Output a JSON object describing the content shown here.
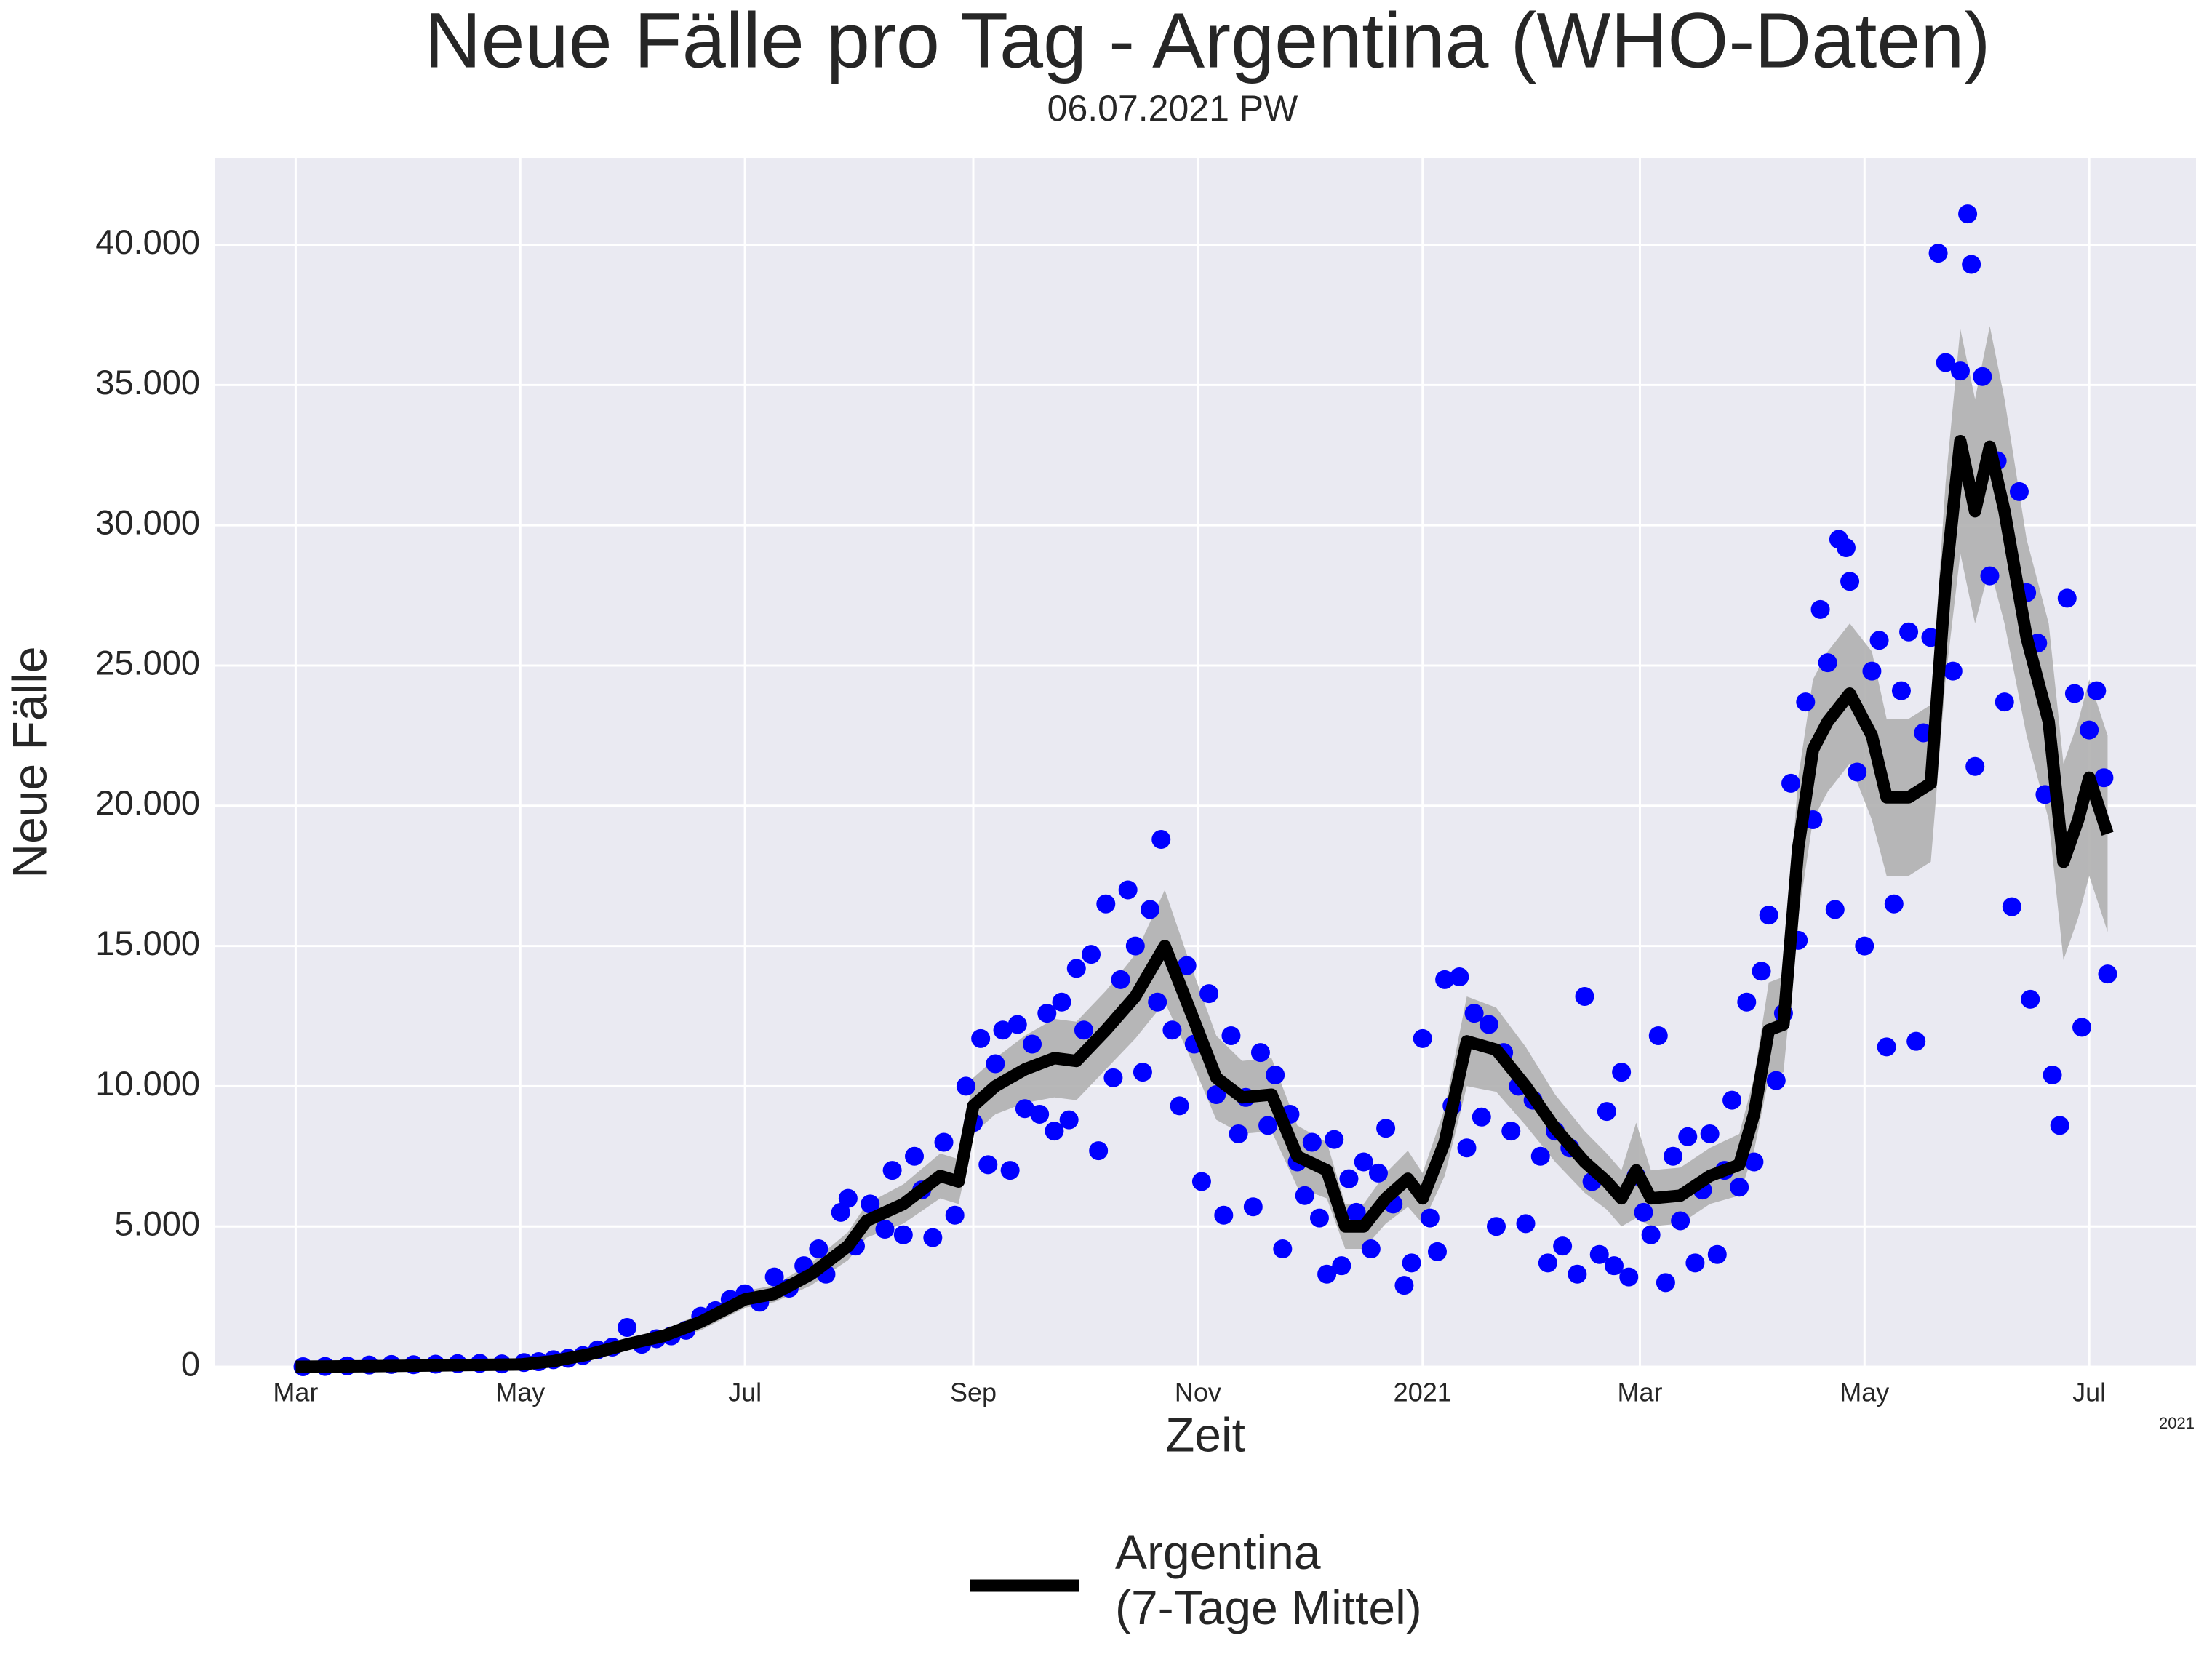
{
  "chart_data": {
    "type": "line",
    "title": "Neue Fälle pro Tag - Argentina (WHO-Daten)",
    "subtitle": "06.07.2021 PW",
    "xlabel": "Zeit",
    "ylabel": "Neue Fälle",
    "x_offset_label": "2021",
    "xlim": [
      -22,
      516
    ],
    "ylim": [
      0,
      43100
    ],
    "grid": true,
    "legend": "lower center",
    "xticks": [
      {
        "value": 0,
        "label": "Mar"
      },
      {
        "value": 61,
        "label": "May"
      },
      {
        "value": 122,
        "label": "Jul"
      },
      {
        "value": 184,
        "label": "Sep"
      },
      {
        "value": 245,
        "label": "Nov"
      },
      {
        "value": 306,
        "label": "2021"
      },
      {
        "value": 365,
        "label": "Mar"
      },
      {
        "value": 426,
        "label": "May"
      },
      {
        "value": 487,
        "label": "Jul"
      }
    ],
    "yticks": [
      0,
      {
        "value": 5000,
        "label": "5.000"
      },
      {
        "value": 10000,
        "label": "10.000"
      },
      {
        "value": 15000,
        "label": "15.000"
      },
      {
        "value": 20000,
        "label": "20.000"
      },
      {
        "value": 25000,
        "label": "25.000"
      },
      {
        "value": 30000,
        "label": "30.000"
      },
      {
        "value": 35000,
        "label": "35.000"
      },
      {
        "value": 40000,
        "label": "40.000"
      }
    ],
    "band_color": "#b0b0b0",
    "series": [
      {
        "name": "Argentina\n(7-Tage Mittel)",
        "color": "#000000",
        "x": [
          0,
          20,
          40,
          61,
          70,
          80,
          90,
          100,
          110,
          122,
          130,
          140,
          150,
          155,
          165,
          175,
          180,
          184,
          190,
          198,
          206,
          212,
          220,
          228,
          236,
          242,
          250,
          257,
          265,
          272,
          280,
          285,
          290,
          296,
          302,
          306,
          312,
          318,
          326,
          334,
          342,
          350,
          356,
          360,
          364,
          368,
          376,
          384,
          392,
          396,
          400,
          404,
          408,
          412,
          416,
          422,
          428,
          432,
          438,
          444,
          448,
          452,
          456,
          460,
          464,
          470,
          476,
          480,
          484,
          487,
          492
        ],
        "values": [
          0,
          20,
          50,
          80,
          200,
          450,
          800,
          1100,
          1600,
          2400,
          2600,
          3300,
          4300,
          5200,
          5800,
          6800,
          6600,
          9300,
          10000,
          10600,
          11000,
          10900,
          12000,
          13200,
          15000,
          13000,
          10300,
          9600,
          9700,
          7500,
          7000,
          5000,
          5000,
          6000,
          6700,
          6000,
          8000,
          11600,
          11300,
          10000,
          8500,
          7300,
          6600,
          6000,
          7000,
          6000,
          6100,
          6800,
          7200,
          9000,
          12000,
          12200,
          18500,
          22000,
          23000,
          24000,
          22500,
          20300,
          20300,
          20800,
          28000,
          33000,
          30500,
          32800,
          30500,
          26000,
          23000,
          18000,
          19500,
          21000,
          19000
        ],
        "band_lower": [
          0,
          0,
          20,
          30,
          100,
          300,
          600,
          900,
          1300,
          2100,
          2300,
          2900,
          3800,
          4600,
          5100,
          6000,
          5800,
          8300,
          9000,
          9400,
          9600,
          9500,
          10600,
          11700,
          13000,
          11300,
          8800,
          8300,
          8400,
          6400,
          6000,
          4200,
          4200,
          5100,
          5700,
          5100,
          6800,
          10000,
          9800,
          8600,
          7300,
          6200,
          5600,
          5000,
          5300,
          5000,
          5100,
          5800,
          6100,
          7700,
          10300,
          10500,
          16000,
          19500,
          20500,
          21500,
          19500,
          17500,
          17500,
          18000,
          24500,
          29000,
          26500,
          28500,
          26500,
          22500,
          19500,
          14500,
          16000,
          17500,
          15500
        ],
        "band_upper": [
          0,
          40,
          80,
          130,
          300,
          600,
          1000,
          1300,
          1900,
          2700,
          2900,
          3700,
          4800,
          5800,
          6500,
          7600,
          7400,
          10300,
          11000,
          11800,
          12400,
          12300,
          13400,
          14700,
          17000,
          14700,
          11800,
          10900,
          11000,
          8600,
          8000,
          5800,
          5800,
          6900,
          7700,
          6900,
          9200,
          13200,
          12800,
          11400,
          9700,
          8400,
          7600,
          7000,
          8700,
          7000,
          7100,
          7800,
          8300,
          10300,
          13700,
          13900,
          21000,
          24500,
          25500,
          26500,
          25500,
          23100,
          23100,
          23600,
          31500,
          37000,
          34500,
          37100,
          34500,
          29500,
          26500,
          21500,
          23000,
          24500,
          22500
        ]
      }
    ],
    "points": {
      "color": "#0000ff",
      "x": [
        2,
        8,
        14,
        20,
        26,
        32,
        38,
        44,
        50,
        56,
        62,
        66,
        70,
        74,
        78,
        82,
        86,
        90,
        94,
        98,
        102,
        106,
        110,
        114,
        118,
        122,
        126,
        130,
        134,
        138,
        142,
        144,
        148,
        150,
        152,
        156,
        160,
        162,
        165,
        168,
        170,
        173,
        176,
        179,
        182,
        184,
        186,
        188,
        190,
        192,
        194,
        196,
        198,
        200,
        202,
        204,
        206,
        208,
        210,
        212,
        214,
        216,
        218,
        220,
        222,
        224,
        226,
        228,
        230,
        232,
        234,
        235,
        238,
        240,
        242,
        244,
        246,
        248,
        250,
        252,
        254,
        256,
        258,
        260,
        262,
        264,
        266,
        268,
        270,
        272,
        274,
        276,
        278,
        280,
        282,
        284,
        286,
        288,
        290,
        292,
        294,
        296,
        298,
        301,
        303,
        306,
        308,
        310,
        312,
        314,
        316,
        318,
        320,
        322,
        324,
        326,
        328,
        330,
        332,
        334,
        336,
        338,
        340,
        342,
        344,
        346,
        348,
        350,
        352,
        354,
        356,
        358,
        360,
        362,
        364,
        366,
        368,
        370,
        372,
        374,
        376,
        378,
        380,
        382,
        384,
        386,
        388,
        390,
        392,
        394,
        396,
        398,
        400,
        402,
        404,
        406,
        408,
        410,
        412,
        414,
        416,
        418,
        419,
        421,
        422,
        424,
        426,
        428,
        430,
        432,
        434,
        436,
        438,
        440,
        442,
        444,
        446,
        448,
        450,
        452,
        454,
        455,
        456,
        458,
        460,
        462,
        464,
        466,
        468,
        470,
        471,
        473,
        475,
        477,
        479,
        481,
        483,
        485,
        487,
        489,
        491,
        492
      ],
      "values": [
        0,
        10,
        30,
        60,
        80,
        70,
        90,
        110,
        120,
        100,
        150,
        180,
        250,
        300,
        400,
        600,
        700,
        1400,
        800,
        1000,
        1100,
        1300,
        1800,
        2000,
        2400,
        2600,
        2300,
        3200,
        2800,
        3600,
        4200,
        3300,
        5500,
        6000,
        4300,
        5800,
        4900,
        7000,
        4700,
        7500,
        6300,
        4600,
        8000,
        5400,
        10000,
        8700,
        11700,
        7200,
        10800,
        12000,
        7000,
        12200,
        9200,
        11500,
        9000,
        12600,
        8400,
        13000,
        8800,
        14200,
        12000,
        14700,
        7700,
        16500,
        10300,
        13800,
        17000,
        15000,
        10500,
        16300,
        13000,
        18800,
        12000,
        9300,
        14300,
        11500,
        6600,
        13300,
        9700,
        5400,
        11800,
        8300,
        9600,
        5700,
        11200,
        8600,
        10400,
        4200,
        9000,
        7300,
        6100,
        8000,
        5300,
        3300,
        8100,
        3600,
        6700,
        5500,
        7300,
        4200,
        6900,
        8500,
        5800,
        2900,
        3700,
        11700,
        5300,
        4100,
        13800,
        9300,
        13900,
        7800,
        12600,
        8900,
        12200,
        5000,
        11200,
        8400,
        10000,
        5100,
        9500,
        7500,
        3700,
        8400,
        4300,
        7800,
        3300,
        13200,
        6600,
        4000,
        9100,
        3600,
        10500,
        3200,
        6800,
        5500,
        4700,
        11800,
        3000,
        7500,
        5200,
        8200,
        3700,
        6300,
        8300,
        4000,
        7000,
        9500,
        6400,
        13000,
        7300,
        14100,
        16100,
        10200,
        12600,
        20800,
        15200,
        23700,
        19500,
        27000,
        25100,
        16300,
        29500,
        29200,
        28000,
        21200,
        15000,
        24800,
        25900,
        11400,
        16500,
        24100,
        26200,
        11600,
        22600,
        26000,
        39700,
        35800,
        24800,
        35500,
        41100,
        39300,
        21400,
        35300,
        28200,
        32300,
        23700,
        16400,
        31200,
        27600,
        13100,
        25800,
        20400,
        10400,
        8600,
        27400,
        24000,
        12100,
        22700,
        24100,
        21000,
        14000
      ]
    }
  }
}
